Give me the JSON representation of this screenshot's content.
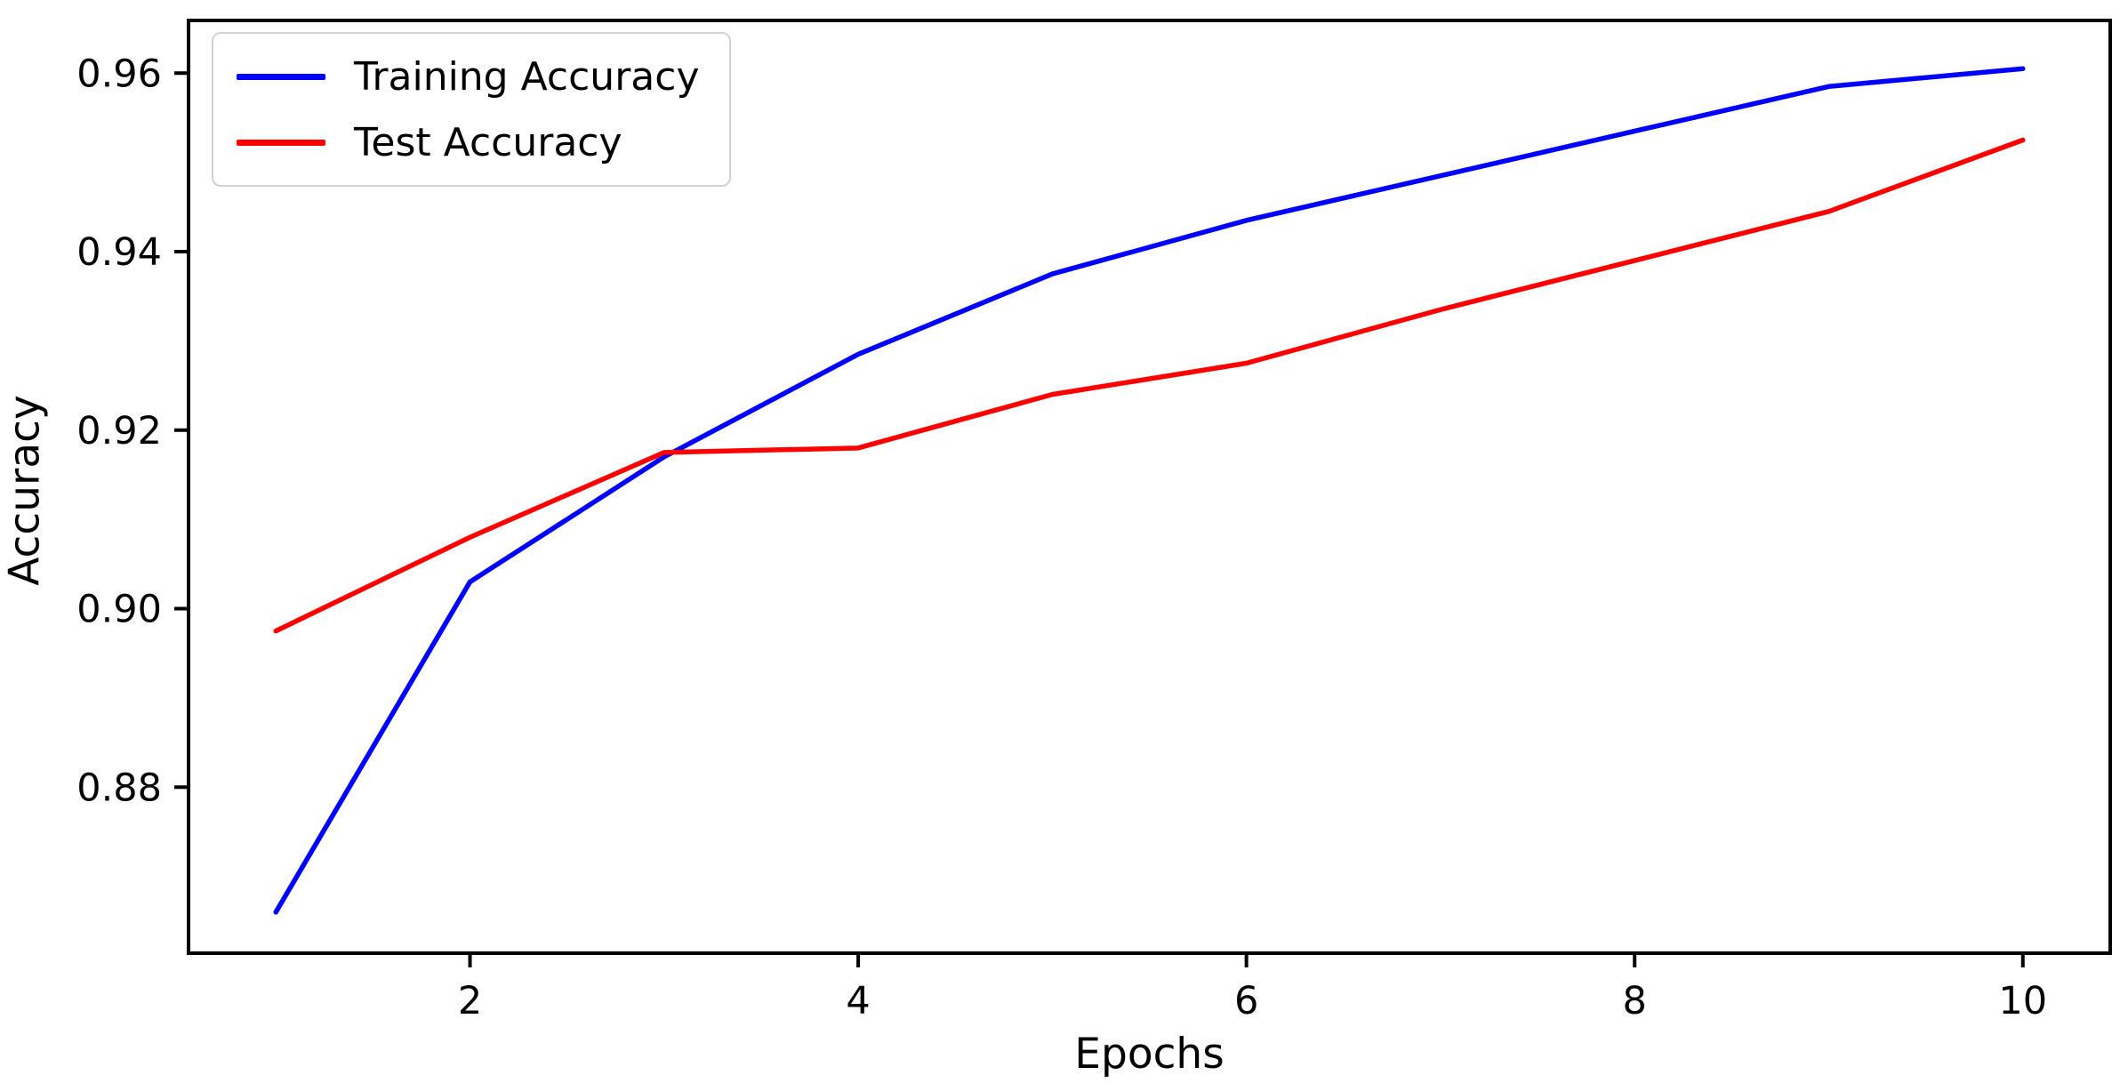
{
  "chart_data": {
    "type": "line",
    "title": "",
    "xlabel": "Epochs",
    "ylabel": "Accuracy",
    "x": [
      1,
      2,
      3,
      4,
      5,
      6,
      7,
      8,
      9,
      10
    ],
    "series": [
      {
        "name": "Training Accuracy",
        "color": "#0000ff",
        "values": [
          0.866,
          0.903,
          0.917,
          0.9285,
          0.9375,
          0.9435,
          0.9485,
          0.9535,
          0.9585,
          0.9605
        ]
      },
      {
        "name": "Test Accuracy",
        "color": "#ff0000",
        "values": [
          0.8975,
          0.908,
          0.9175,
          0.918,
          0.924,
          0.9275,
          0.9335,
          0.939,
          0.9445,
          0.9525
        ]
      }
    ],
    "xlim": [
      0.55,
      10.45
    ],
    "ylim": [
      0.8614,
      0.9659
    ],
    "x_ticks": [
      2,
      4,
      6,
      8,
      10
    ],
    "x_tick_labels": [
      "2",
      "4",
      "6",
      "8",
      "10"
    ],
    "y_ticks": [
      0.88,
      0.9,
      0.92,
      0.94,
      0.96
    ],
    "y_tick_labels": [
      "0.88",
      "0.90",
      "0.92",
      "0.94",
      "0.96"
    ],
    "grid": false,
    "legend_position": "upper left",
    "axis_color": "#000000",
    "line_width": 5.5
  }
}
